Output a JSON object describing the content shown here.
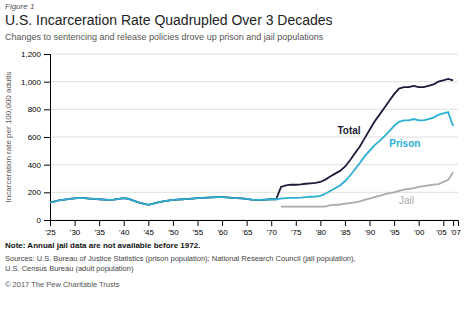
{
  "chart_data": {
    "type": "line",
    "title": "U.S. Incarceration Rate Quadrupled Over 3 Decades",
    "subtitle": "Changes to sentencing and release policies drove up prison and jail populations",
    "annotations": [
      "Figure 1",
      "Note: Annual jail data are not available before 1972.",
      "Sources: U.S. Bureau of Justice Statistics (prison population); National Research Council (jail population),\nU.S. Census Bureau (adult population)",
      "© 2017 The Pew Charitable Trusts"
    ],
    "y_label": "Incarceration rate per 100,000 adults",
    "grid": true,
    "xlim": [
      1925,
      2008
    ],
    "xticks": [
      {
        "value": 1925,
        "label": "'25"
      },
      {
        "value": 1930,
        "label": "'30"
      },
      {
        "value": 1935,
        "label": "'35"
      },
      {
        "value": 1940,
        "label": "'40"
      },
      {
        "value": 1945,
        "label": "'45"
      },
      {
        "value": 1950,
        "label": "'50"
      },
      {
        "value": 1955,
        "label": "'55"
      },
      {
        "value": 1960,
        "label": "'60"
      },
      {
        "value": 1965,
        "label": "'65"
      },
      {
        "value": 1970,
        "label": "'70"
      },
      {
        "value": 1975,
        "label": "'75"
      },
      {
        "value": 1980,
        "label": "'80"
      },
      {
        "value": 1985,
        "label": "'85"
      },
      {
        "value": 1990,
        "label": "'90"
      },
      {
        "value": 1995,
        "label": "'95"
      },
      {
        "value": 2000,
        "label": "'00"
      },
      {
        "value": 2005,
        "label": "'05"
      },
      {
        "value": 2007,
        "label": "'07"
      }
    ],
    "ylim": [
      0,
      1200
    ],
    "yticks": [
      0,
      200,
      400,
      600,
      800,
      {
        "value": 1000,
        "label": "1,000"
      },
      {
        "value": 1200,
        "label": "1,200"
      }
    ],
    "series": [
      {
        "name": "Total",
        "color": "#1c1c3a",
        "x": [
          1925,
          1926,
          1927,
          1928,
          1929,
          1930,
          1931,
          1932,
          1933,
          1934,
          1935,
          1936,
          1937,
          1938,
          1939,
          1940,
          1941,
          1942,
          1943,
          1944,
          1945,
          1946,
          1947,
          1948,
          1949,
          1950,
          1951,
          1952,
          1953,
          1954,
          1955,
          1956,
          1957,
          1958,
          1959,
          1960,
          1961,
          1962,
          1963,
          1964,
          1965,
          1966,
          1967,
          1968,
          1969,
          1970,
          1971,
          1972,
          1973,
          1974,
          1975,
          1976,
          1977,
          1978,
          1979,
          1980,
          1981,
          1982,
          1983,
          1984,
          1985,
          1986,
          1987,
          1988,
          1989,
          1990,
          1991,
          1992,
          1993,
          1994,
          1995,
          1996,
          1997,
          1998,
          1999,
          2000,
          2001,
          2002,
          2003,
          2004,
          2005,
          2006,
          2007
        ],
        "values": [
          128,
          135,
          143,
          148,
          152,
          157,
          160,
          158,
          155,
          152,
          150,
          148,
          146,
          148,
          153,
          158,
          152,
          140,
          128,
          118,
          110,
          118,
          128,
          135,
          140,
          145,
          148,
          150,
          152,
          155,
          158,
          160,
          162,
          164,
          165,
          165,
          163,
          160,
          158,
          156,
          153,
          148,
          145,
          145,
          148,
          150,
          150,
          239,
          250,
          255,
          255,
          258,
          262,
          265,
          268,
          275,
          292,
          315,
          335,
          355,
          385,
          430,
          480,
          530,
          590,
          650,
          710,
          760,
          810,
          860,
          910,
          950,
          960,
          960,
          970,
          960,
          960,
          970,
          980,
          1000,
          1010,
          1020,
          1010
        ]
      },
      {
        "name": "Prison",
        "color": "#2bafd4",
        "x": [
          1925,
          1926,
          1927,
          1928,
          1929,
          1930,
          1931,
          1932,
          1933,
          1934,
          1935,
          1936,
          1937,
          1938,
          1939,
          1940,
          1941,
          1942,
          1943,
          1944,
          1945,
          1946,
          1947,
          1948,
          1949,
          1950,
          1951,
          1952,
          1953,
          1954,
          1955,
          1956,
          1957,
          1958,
          1959,
          1960,
          1961,
          1962,
          1963,
          1964,
          1965,
          1966,
          1967,
          1968,
          1969,
          1970,
          1971,
          1972,
          1973,
          1974,
          1975,
          1976,
          1977,
          1978,
          1979,
          1980,
          1981,
          1982,
          1983,
          1984,
          1985,
          1986,
          1987,
          1988,
          1989,
          1990,
          1991,
          1992,
          1993,
          1994,
          1995,
          1996,
          1997,
          1998,
          1999,
          2000,
          2001,
          2002,
          2003,
          2004,
          2005,
          2006,
          2007
        ],
        "values": [
          128,
          135,
          143,
          148,
          152,
          157,
          160,
          158,
          155,
          152,
          150,
          148,
          146,
          148,
          153,
          158,
          152,
          140,
          128,
          118,
          110,
          118,
          128,
          135,
          140,
          145,
          148,
          150,
          152,
          155,
          158,
          160,
          162,
          164,
          165,
          165,
          163,
          160,
          158,
          156,
          153,
          148,
          145,
          145,
          148,
          150,
          150,
          155,
          158,
          160,
          160,
          162,
          165,
          168,
          170,
          175,
          190,
          210,
          230,
          250,
          280,
          320,
          365,
          410,
          460,
          500,
          540,
          570,
          605,
          640,
          680,
          710,
          720,
          720,
          730,
          720,
          720,
          730,
          740,
          760,
          770,
          780,
          680
        ]
      },
      {
        "name": "Jail",
        "color": "#aaaaaa",
        "x": [
          1972,
          1973,
          1974,
          1975,
          1976,
          1977,
          1978,
          1979,
          1980,
          1981,
          1982,
          1983,
          1984,
          1985,
          1986,
          1987,
          1988,
          1989,
          1990,
          1991,
          1992,
          1993,
          1994,
          1995,
          1996,
          1997,
          1998,
          1999,
          2000,
          2001,
          2002,
          2003,
          2004,
          2005,
          2006,
          2007
        ],
        "values": [
          96,
          96,
          96,
          96,
          96,
          96,
          96,
          96,
          96,
          96,
          108,
          110,
          112,
          118,
          122,
          128,
          135,
          145,
          155,
          165,
          175,
          185,
          195,
          200,
          210,
          220,
          225,
          230,
          240,
          245,
          250,
          255,
          260,
          275,
          290,
          345
        ]
      }
    ]
  }
}
